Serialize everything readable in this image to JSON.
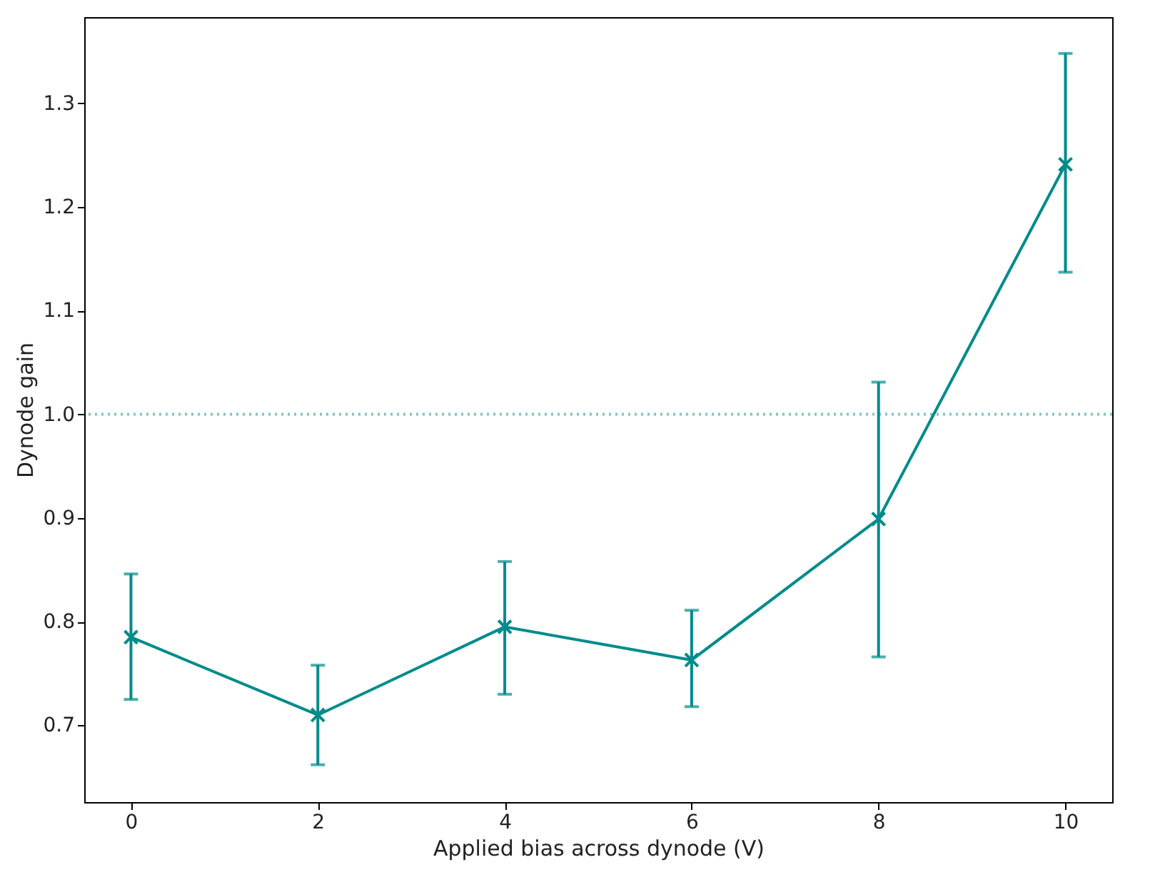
{
  "chart_data": {
    "type": "line",
    "xlabel": "Applied bias across dynode (V)",
    "ylabel": "Dynode gain",
    "x": [
      0,
      2,
      4,
      6,
      8,
      10
    ],
    "series": [
      {
        "color": "#008b8b",
        "values": [
          0.785,
          0.71,
          0.795,
          0.763,
          0.899,
          1.241
        ],
        "errors": [
          [
            0.725,
            0.846
          ],
          [
            0.662,
            0.758
          ],
          [
            0.73,
            0.858
          ],
          [
            0.718,
            0.811
          ],
          [
            0.766,
            1.031
          ],
          [
            1.137,
            1.348
          ]
        ]
      }
    ],
    "xlim": [
      -0.5,
      10.5
    ],
    "ylim": [
      0.626,
      1.383
    ],
    "xticks": [
      0,
      2,
      4,
      6,
      8,
      10
    ],
    "yticks": [
      0.7,
      0.8,
      0.9,
      {
        "value": 1.0,
        "label": "1.0"
      },
      1.1,
      1.2,
      1.3
    ],
    "ref_lines": [
      {
        "axis": "y",
        "value": 1.0,
        "color": "#7fc5c5",
        "line_style": "dotted"
      }
    ],
    "marker": "cross",
    "line_style": "solid",
    "grid": false
  }
}
